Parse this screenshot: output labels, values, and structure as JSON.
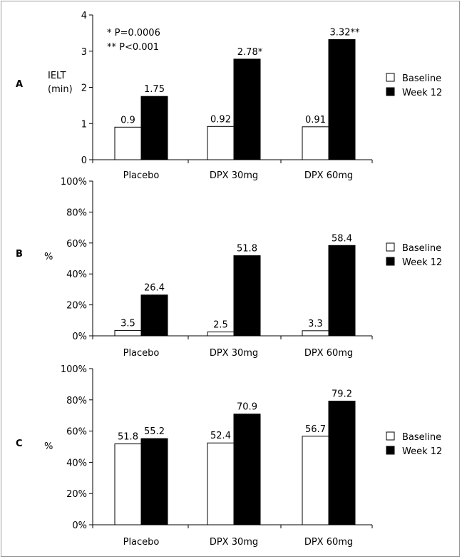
{
  "chart_data": [
    {
      "panel": "A",
      "type": "bar",
      "ylabel": "IELT (min)",
      "ylabel_lines": [
        "IELT",
        "(min)"
      ],
      "categories": [
        "Placebo",
        "DPX 30mg",
        "DPX 60mg"
      ],
      "series": [
        {
          "name": "Baseline",
          "values": [
            0.9,
            0.92,
            0.91
          ],
          "labels": [
            "0.9",
            "0.92",
            "0.91"
          ]
        },
        {
          "name": "Week 12",
          "values": [
            1.75,
            2.78,
            3.32
          ],
          "labels": [
            "1.75",
            "2.78*",
            "3.32**"
          ]
        }
      ],
      "ylim": [
        0,
        4
      ],
      "yticks": [
        "0",
        "1",
        "2",
        "3",
        "4"
      ],
      "annotations": [
        "*   P=0.0006",
        "** P<0.001"
      ],
      "legend": "right"
    },
    {
      "panel": "B",
      "type": "bar",
      "ylabel": "%",
      "categories": [
        "Placebo",
        "DPX 30mg",
        "DPX 60mg"
      ],
      "series": [
        {
          "name": "Baseline",
          "values": [
            3.5,
            2.5,
            3.3
          ],
          "labels": [
            "3.5",
            "2.5",
            "3.3"
          ]
        },
        {
          "name": "Week 12",
          "values": [
            26.4,
            51.8,
            58.4
          ],
          "labels": [
            "26.4",
            "51.8",
            "58.4"
          ]
        }
      ],
      "ylim": [
        0,
        100
      ],
      "yticks": [
        "0%",
        "20%",
        "40%",
        "60%",
        "80%",
        "100%"
      ],
      "legend": "right"
    },
    {
      "panel": "C",
      "type": "bar",
      "ylabel": "%",
      "categories": [
        "Placebo",
        "DPX 30mg",
        "DPX 60mg"
      ],
      "series": [
        {
          "name": "Baseline",
          "values": [
            51.8,
            52.4,
            56.7
          ],
          "labels": [
            "51.8",
            "52.4",
            "56.7"
          ]
        },
        {
          "name": "Week 12",
          "values": [
            55.2,
            70.9,
            79.2
          ],
          "labels": [
            "55.2",
            "70.9",
            "79.2"
          ]
        }
      ],
      "ylim": [
        0,
        100
      ],
      "yticks": [
        "0%",
        "20%",
        "40%",
        "60%",
        "80%",
        "100%"
      ],
      "legend": "right"
    }
  ],
  "colors": {
    "baseline": "#ffffff",
    "week12": "#000000",
    "axis": "#000000"
  }
}
